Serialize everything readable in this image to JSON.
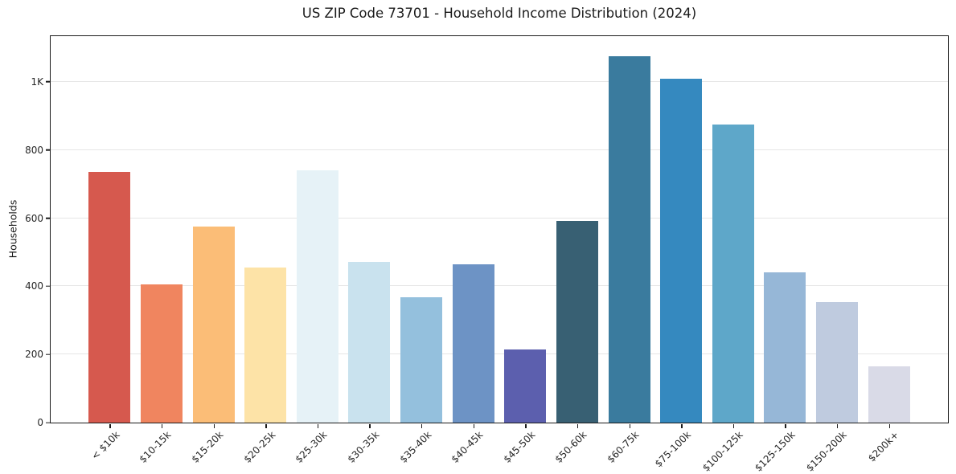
{
  "chart_data": {
    "type": "bar",
    "title": "US ZIP Code 73701 - Household Income Distribution (2024)",
    "xlabel": "",
    "ylabel": "Households",
    "categories": [
      "< $10k",
      "$10-15k",
      "$15-20k",
      "$20-25k",
      "$25-30k",
      "$30-35k",
      "$35-40k",
      "$40-45k",
      "$45-50k",
      "$50-60k",
      "$60-75k",
      "$75-100k",
      "$100-125k",
      "$125-150k",
      "$150-200k",
      "$200k+"
    ],
    "values": [
      738,
      407,
      576,
      457,
      742,
      473,
      368,
      466,
      214,
      592,
      1078,
      1012,
      876,
      442,
      355,
      165
    ],
    "bar_colors": [
      "#d6594e",
      "#f0855f",
      "#fbbd77",
      "#fde3a7",
      "#e6f2f7",
      "#c9e2ee",
      "#94c0dd",
      "#6d93c5",
      "#5c5fae",
      "#386073",
      "#3a7b9e",
      "#3589bf",
      "#5ea7c9",
      "#96b7d7",
      "#bfcbdf",
      "#d9dae7"
    ],
    "ylim": [
      0,
      1134
    ],
    "ytick_values": [
      0,
      200,
      400,
      600,
      800,
      1000
    ],
    "ytick_labels": [
      "0",
      "200",
      "400",
      "600",
      "800",
      "1K"
    ],
    "grid": "horizontal",
    "grid_color": "#e6e6e6",
    "axis_color": "#1a1a1a",
    "legend": "none"
  }
}
